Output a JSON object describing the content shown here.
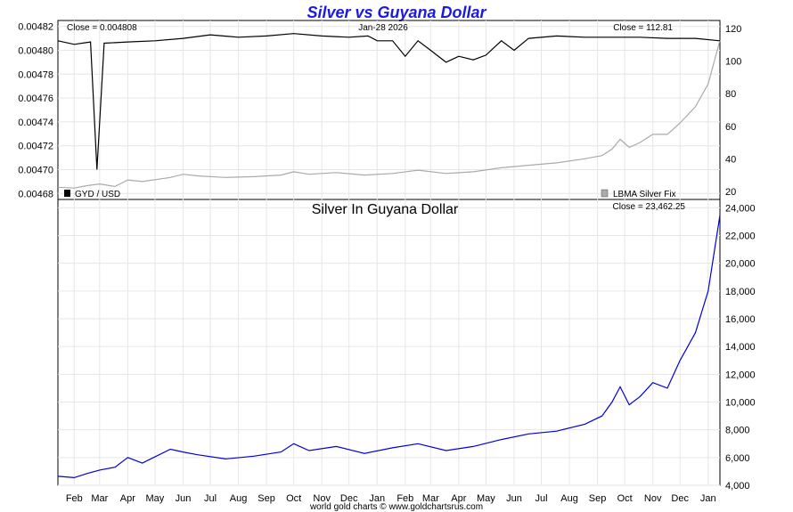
{
  "chart_data": [
    {
      "type": "line",
      "title": "Silver vs Guyana Dollar",
      "date_label": "Jan-28  2026",
      "left_close_label": "Close = 0.004808",
      "right_close_label": "Close = 112.81",
      "left_axis": {
        "ticks": [
          "0.00468",
          "0.00470",
          "0.00472",
          "0.00474",
          "0.00476",
          "0.00478",
          "0.00480",
          "0.00482"
        ],
        "ylim": [
          0.004675,
          0.004825
        ]
      },
      "right_axis": {
        "ticks": [
          "20",
          "40",
          "60",
          "80",
          "100",
          "120"
        ],
        "ylim": [
          15,
          125
        ]
      },
      "series": [
        {
          "name": "GYD / USD",
          "color": "#000000",
          "axis": "left",
          "x": [
            "2025-01-28",
            "2025-02-15",
            "2025-03-05",
            "2025-03-12",
            "2025-03-20",
            "2025-04-15",
            "2025-05-15",
            "2025-06-15",
            "2025-07-15",
            "2025-08-15",
            "2025-09-15",
            "2025-10-15",
            "2025-11-15",
            "2025-12-15",
            "2026-01-05",
            "2026-01-15",
            "2026-02-01",
            "2026-02-15",
            "2026-03-01",
            "2026-03-15",
            "2026-04-01",
            "2026-04-15",
            "2026-05-01",
            "2026-05-15",
            "2026-06-01",
            "2026-06-15",
            "2026-07-01",
            "2026-08-01",
            "2026-09-01",
            "2026-10-01",
            "2026-11-01",
            "2026-12-01",
            "2027-01-01",
            "2027-01-28"
          ],
          "y": [
            0.004808,
            0.004805,
            0.004807,
            0.0047,
            0.004806,
            0.004807,
            0.004808,
            0.00481,
            0.004813,
            0.004811,
            0.004812,
            0.004814,
            0.004812,
            0.004811,
            0.004812,
            0.004808,
            0.004808,
            0.004795,
            0.004808,
            0.0048,
            0.00479,
            0.004795,
            0.004792,
            0.004796,
            0.004808,
            0.0048,
            0.00481,
            0.004812,
            0.004811,
            0.004811,
            0.004811,
            0.00481,
            0.00481,
            0.004808
          ]
        },
        {
          "name": "LBMA Silver Fix",
          "color": "#aaaaaa",
          "axis": "right",
          "x": [
            "2025-01-28",
            "2025-02-15",
            "2025-03-01",
            "2025-03-15",
            "2025-04-01",
            "2025-04-15",
            "2025-05-01",
            "2025-06-01",
            "2025-06-15",
            "2025-07-01",
            "2025-08-01",
            "2025-09-01",
            "2025-10-01",
            "2025-10-15",
            "2025-11-01",
            "2025-12-01",
            "2026-01-01",
            "2026-02-01",
            "2026-03-01",
            "2026-04-01",
            "2026-05-01",
            "2026-06-01",
            "2026-07-01",
            "2026-08-01",
            "2026-09-01",
            "2026-09-20",
            "2026-10-01",
            "2026-10-10",
            "2026-10-20",
            "2026-11-01",
            "2026-11-15",
            "2026-12-01",
            "2026-12-15",
            "2027-01-01",
            "2027-01-15",
            "2027-01-28"
          ],
          "y": [
            22.5,
            22.0,
            23.5,
            24.5,
            23.0,
            27.0,
            26.0,
            28.5,
            30.5,
            29.5,
            28.5,
            29.0,
            30.0,
            32.0,
            30.5,
            31.5,
            30.0,
            31.0,
            33.0,
            31.0,
            32.0,
            34.5,
            36.0,
            37.5,
            40.0,
            42.0,
            46.0,
            52.0,
            47.0,
            50.0,
            55.0,
            55.0,
            62.0,
            72.0,
            86.0,
            112.81
          ]
        }
      ],
      "legend": [
        {
          "label": "GYD / USD",
          "color": "#000000",
          "position": "bottom-left"
        },
        {
          "label": "LBMA Silver Fix",
          "color": "#aaaaaa",
          "position": "bottom-right"
        }
      ]
    },
    {
      "type": "line",
      "title": "Silver In Guyana Dollar",
      "close_label": "Close = 23,462.25",
      "right_axis": {
        "ticks": [
          "4,000",
          "6,000",
          "8,000",
          "10,000",
          "12,000",
          "14,000",
          "16,000",
          "18,000",
          "20,000",
          "22,000",
          "24,000"
        ],
        "ylim": [
          4000,
          24600
        ]
      },
      "series": [
        {
          "name": "",
          "color": "#0000dd",
          "x": [
            "2025-01-28",
            "2025-02-15",
            "2025-03-01",
            "2025-03-15",
            "2025-04-01",
            "2025-04-15",
            "2025-05-01",
            "2025-06-01",
            "2025-06-15",
            "2025-07-01",
            "2025-08-01",
            "2025-09-01",
            "2025-10-01",
            "2025-10-15",
            "2025-11-01",
            "2025-12-01",
            "2026-01-01",
            "2026-02-01",
            "2026-03-01",
            "2026-04-01",
            "2026-05-01",
            "2026-06-01",
            "2026-07-01",
            "2026-08-01",
            "2026-09-01",
            "2026-09-20",
            "2026-10-01",
            "2026-10-10",
            "2026-10-20",
            "2026-11-01",
            "2026-11-15",
            "2026-12-01",
            "2026-12-15",
            "2027-01-01",
            "2027-01-15",
            "2027-01-28"
          ],
          "y": [
            4650,
            4550,
            4850,
            5100,
            5300,
            6000,
            5600,
            6600,
            6400,
            6200,
            5900,
            6100,
            6400,
            7000,
            6500,
            6800,
            6300,
            6700,
            7000,
            6500,
            6800,
            7300,
            7700,
            7900,
            8400,
            9000,
            10000,
            11100,
            9800,
            10400,
            11400,
            11000,
            13000,
            15000,
            18000,
            23462.25
          ]
        }
      ]
    }
  ],
  "x_axis": {
    "months": [
      "Feb",
      "Mar",
      "Apr",
      "May",
      "Jun",
      "Jul",
      "Aug",
      "Sep",
      "Oct",
      "Nov",
      "Dec",
      "Jan",
      "Feb",
      "Mar",
      "Apr",
      "May",
      "Jun",
      "Jul",
      "Aug",
      "Sep",
      "Oct",
      "Nov",
      "Dec",
      "Jan"
    ]
  },
  "footer": "world gold charts © www.goldchartsrus.com"
}
